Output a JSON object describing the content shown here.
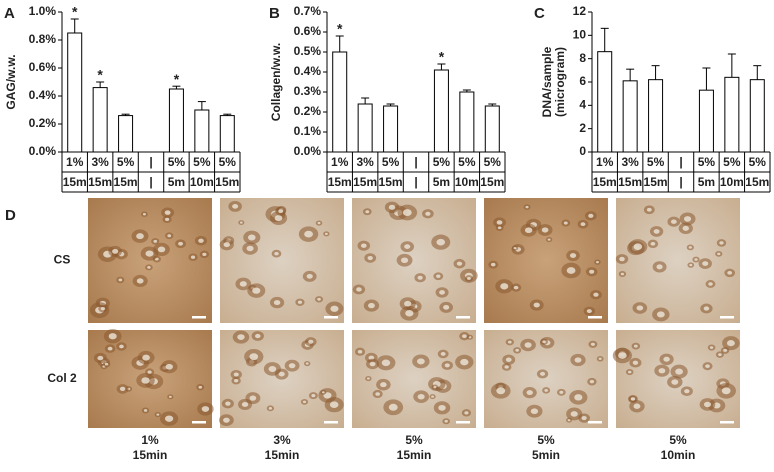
{
  "chart_data": [
    {
      "type": "bar",
      "label": "A",
      "ylabel": "GAG/w.w.",
      "categories": [
        "1%",
        "3%",
        "5%",
        "|",
        "5%",
        "5%",
        "5%"
      ],
      "subcategories": [
        "15m",
        "15m",
        "15m",
        "|",
        "5m",
        "10m",
        "15m"
      ],
      "values": [
        0.85,
        0.46,
        0.26,
        null,
        0.45,
        0.3,
        0.26
      ],
      "errors": [
        0.1,
        0.04,
        0.01,
        null,
        0.02,
        0.06,
        0.01
      ],
      "significance": [
        "*",
        "*",
        null,
        null,
        "*",
        null,
        null
      ],
      "color": "#ffffff",
      "ylim": [
        0,
        1.0
      ],
      "yticks": [
        {
          "value": 0,
          "label": "0.0%"
        },
        {
          "value": 0.2,
          "label": "0.2%"
        },
        {
          "value": 0.4,
          "label": "0.4%"
        },
        {
          "value": 0.6,
          "label": "0.6%"
        },
        {
          "value": 0.8,
          "label": "0.8%"
        },
        {
          "value": 1.0,
          "label": "1.0%"
        }
      ]
    },
    {
      "type": "bar",
      "label": "B",
      "ylabel": "Collagen/w.w.",
      "categories": [
        "1%",
        "3%",
        "5%",
        "|",
        "5%",
        "5%",
        "5%"
      ],
      "subcategories": [
        "15m",
        "15m",
        "15m",
        "|",
        "5m",
        "10m",
        "15m"
      ],
      "values": [
        0.5,
        0.24,
        0.23,
        null,
        0.41,
        0.3,
        0.23
      ],
      "errors": [
        0.08,
        0.03,
        0.01,
        null,
        0.03,
        0.01,
        0.01
      ],
      "significance": [
        "*",
        null,
        null,
        null,
        "*",
        null,
        null
      ],
      "color": "#ffffff",
      "ylim": [
        0,
        0.7
      ],
      "yticks": [
        {
          "value": 0,
          "label": "0.0%"
        },
        {
          "value": 0.1,
          "label": "0.1%"
        },
        {
          "value": 0.2,
          "label": "0.2%"
        },
        {
          "value": 0.3,
          "label": "0.3%"
        },
        {
          "value": 0.4,
          "label": "0.4%"
        },
        {
          "value": 0.5,
          "label": "0.5%"
        },
        {
          "value": 0.6,
          "label": "0.6%"
        },
        {
          "value": 0.7,
          "label": "0.7%"
        }
      ]
    },
    {
      "type": "bar",
      "label": "C",
      "ylabel": [
        "DNA/sample",
        "(microgram)"
      ],
      "categories": [
        "1%",
        "3%",
        "5%",
        "|",
        "5%",
        "5%",
        "5%"
      ],
      "subcategories": [
        "15m",
        "15m",
        "15m",
        "|",
        "5m",
        "10m",
        "15m"
      ],
      "values": [
        8.6,
        6.1,
        6.2,
        null,
        5.3,
        6.4,
        6.2
      ],
      "errors": [
        2.0,
        1.0,
        1.2,
        null,
        1.9,
        2.0,
        1.2
      ],
      "color": "#ffffff",
      "ylim": [
        0,
        12
      ],
      "yticks": [
        0,
        2,
        4,
        6,
        8,
        10,
        12
      ]
    }
  ],
  "panel_d": {
    "label": "D",
    "row_labels": [
      "CS",
      "Col 2"
    ],
    "column_labels": [
      [
        "1%",
        "15min"
      ],
      [
        "3%",
        "15min"
      ],
      [
        "5%",
        "15min"
      ],
      [
        "5%",
        "5min"
      ],
      [
        "5%",
        "10min"
      ]
    ]
  }
}
